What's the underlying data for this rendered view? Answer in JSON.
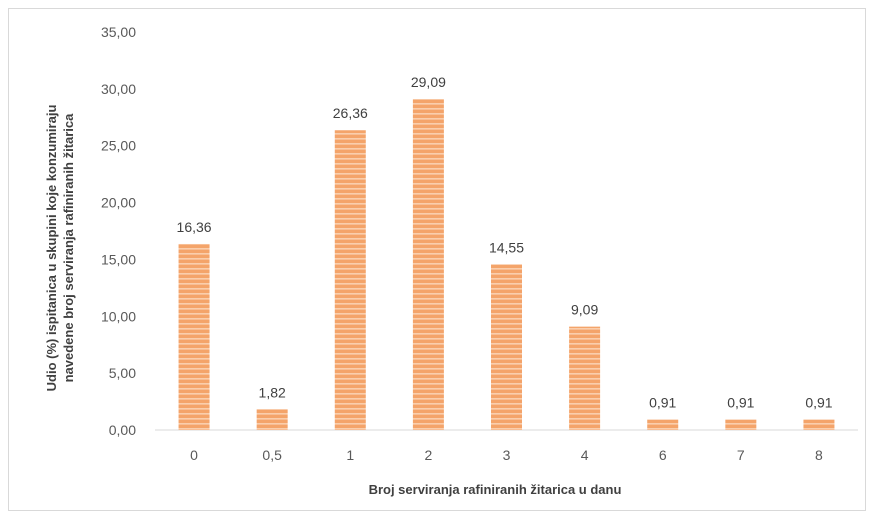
{
  "chart_data": {
    "type": "bar",
    "categories": [
      "0",
      "0,5",
      "1",
      "2",
      "3",
      "4",
      "6",
      "7",
      "8"
    ],
    "values": [
      16.36,
      1.82,
      26.36,
      29.09,
      14.55,
      9.09,
      0.91,
      0.91,
      0.91
    ],
    "data_labels": [
      "16,36",
      "1,82",
      "26,36",
      "29,09",
      "14,55",
      "9,09",
      "0,91",
      "0,91",
      "0,91"
    ],
    "xlabel": "Broj serviranja rafiniranih žitarica u danu",
    "ylabel_lines": [
      "Udio (%)  ispitanica  u skupini koje konzumiraju",
      "navedene broj serviranja rafiniranih žitarica"
    ],
    "ylim": [
      0,
      35
    ],
    "yticks": [
      "0,00",
      "5,00",
      "10,00",
      "15,00",
      "20,00",
      "25,00",
      "30,00",
      "35,00"
    ],
    "grid": false,
    "legend": "none",
    "bar_color": "#f4a46a",
    "bar_stripe_color": "#fcd9bd"
  }
}
